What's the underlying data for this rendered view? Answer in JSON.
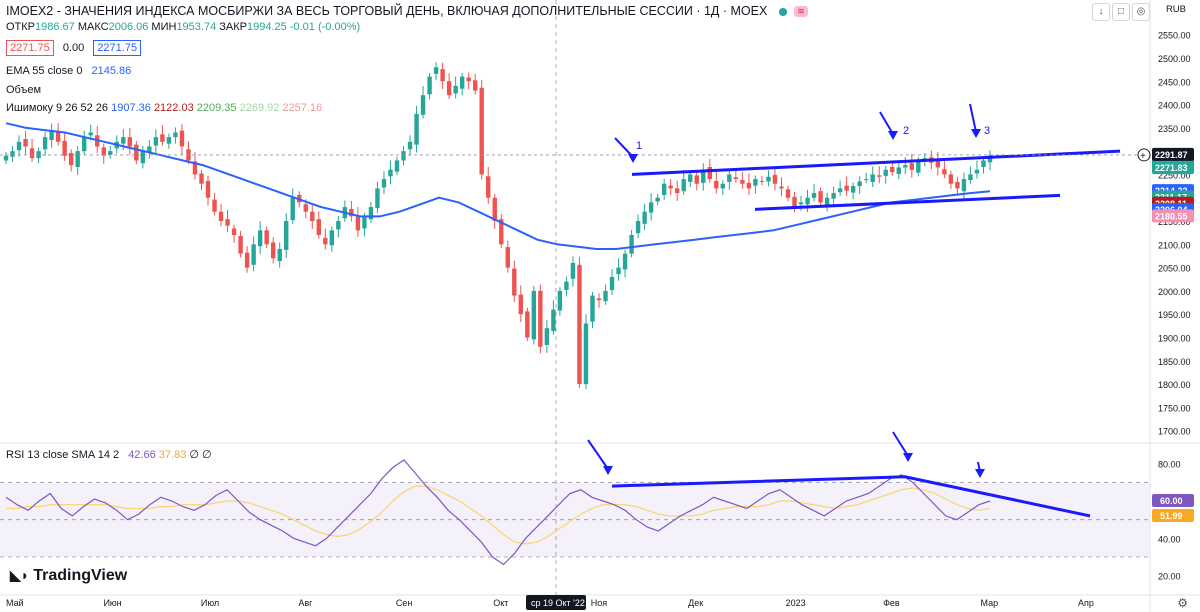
{
  "header": {
    "title": "IMOEX2 - ЗНАЧЕНИЯ ИНДЕКСА МОСБИРЖИ ЗА ВЕСЬ ТОРГОВЫЙ ДЕНЬ, ВКЛЮЧАЯ ДОПОЛНИТЕЛЬНЫЕ СЕССИИ · 1Д · MOEX",
    "currency": "RUB"
  },
  "ohlc": {
    "open_label": "ОТКР",
    "open": "1986.67",
    "high_label": "МАКС",
    "high": "2006.06",
    "low_label": "МИН",
    "low": "1953.74",
    "close_label": "ЗАКР",
    "close": "1994.25",
    "change": "-0.01 (-0.00%)"
  },
  "trade_boxes": {
    "sell": "2271.75",
    "spread": "0.00",
    "buy": "2271.75"
  },
  "indicators": {
    "ema_label": "EMA 55 close 0",
    "ema_value": "2145.86",
    "volume_label": "Объем",
    "ichimoku_label": "Ишимоку 9 26 52 26",
    "ichimoku_values": [
      "1907.36",
      "2122.03",
      "2209.35",
      "2269.92",
      "2257.16"
    ]
  },
  "rsi_legend": {
    "label": "RSI 13 close SMA 14 2",
    "rsi": "42.66",
    "sma": "37.83",
    "extra": "∅ ∅"
  },
  "price_axis": {
    "ticks": [
      "2550.00",
      "2500.00",
      "2450.00",
      "2400.00",
      "2350.00",
      "2300.00",
      "2250.00",
      "2200.00",
      "2150.00",
      "2100.00",
      "2050.00",
      "2000.00",
      "1950.00",
      "1900.00",
      "1850.00",
      "1800.00",
      "1750.00",
      "1700.00"
    ],
    "labels": [
      {
        "text": "2271.83",
        "color": "#26a69a",
        "value": 2271.83
      },
      {
        "text": "2291.87",
        "color": "#131722",
        "value": 2291.87
      },
      {
        "text": "2271.83",
        "color": "#26a69a",
        "value": 2263.5
      },
      {
        "text": "2214.22",
        "color": "#2962ff",
        "value": 2214.22
      },
      {
        "text": "2211.17",
        "color": "#26a69a",
        "value": 2200.5
      },
      {
        "text": "2208.11",
        "color": "#b71c1c",
        "value": 2187.0
      },
      {
        "text": "2206.04",
        "color": "#2962ff",
        "value": 2173.5
      },
      {
        "text": "2180.55",
        "color": "#f48fb1",
        "value": 2160.0
      }
    ]
  },
  "rsi_axis": {
    "ticks": [
      "80.00",
      "60.00",
      "40.00",
      "20.00"
    ],
    "labels": [
      {
        "text": "60.00",
        "color": "#7e57c2",
        "value": 60.0
      },
      {
        "text": "51.99",
        "color": "#f9a825",
        "value": 51.99
      }
    ]
  },
  "time_axis": {
    "labels": [
      "Май",
      "Июн",
      "Июл",
      "Авг",
      "Сен",
      "Окт",
      "Ноя",
      "Дек",
      "2023",
      "Фев",
      "Мар",
      "Апр"
    ],
    "crosshair_label": "ср 19 Окт '22"
  },
  "annotations": [
    "1",
    "2",
    "3"
  ],
  "brand": "TradingView",
  "chart_data": {
    "type": "candlestick",
    "instrument": "IMOEX2",
    "timeframe": "1Д",
    "price_range": [
      1680,
      2560
    ],
    "rsi_range": [
      15,
      90
    ],
    "candles_close": [
      2290,
      2300,
      2320,
      2310,
      2285,
      2300,
      2330,
      2345,
      2320,
      2290,
      2270,
      2300,
      2330,
      2340,
      2310,
      2290,
      2300,
      2320,
      2330,
      2310,
      2280,
      2300,
      2310,
      2330,
      2320,
      2330,
      2340,
      2310,
      2280,
      2250,
      2230,
      2200,
      2170,
      2150,
      2140,
      2120,
      2080,
      2050,
      2100,
      2130,
      2100,
      2070,
      2090,
      2150,
      2200,
      2190,
      2170,
      2150,
      2120,
      2100,
      2130,
      2150,
      2180,
      2160,
      2130,
      2160,
      2180,
      2220,
      2240,
      2260,
      2280,
      2300,
      2320,
      2380,
      2420,
      2460,
      2480,
      2450,
      2420,
      2440,
      2460,
      2450,
      2430,
      2250,
      2200,
      2150,
      2100,
      2050,
      1990,
      1950,
      1900,
      2000,
      1880,
      1920,
      1960,
      2000,
      2020,
      2060,
      1800,
      1930,
      1990,
      1980,
      2000,
      2030,
      2050,
      2080,
      2120,
      2150,
      2170,
      2190,
      2200,
      2230,
      2220,
      2210,
      2240,
      2250,
      2230,
      2260,
      2240,
      2220,
      2230,
      2250,
      2240,
      2230,
      2220,
      2240,
      2235,
      2245,
      2230,
      2220,
      2200,
      2180,
      2190,
      2200,
      2210,
      2190,
      2200,
      2210,
      2220,
      2215,
      2225,
      2235,
      2240,
      2250,
      2245,
      2260,
      2255,
      2265,
      2270,
      2260,
      2280,
      2285,
      2275,
      2265,
      2250,
      2230,
      2220,
      2240,
      2250,
      2260,
      2280,
      2291
    ],
    "ema55": [
      2360,
      2350,
      2345,
      2340,
      2330,
      2320,
      2310,
      2300,
      2290,
      2280,
      2270,
      2255,
      2240,
      2225,
      2210,
      2195,
      2180,
      2170,
      2160,
      2160,
      2170,
      2185,
      2200,
      2190,
      2170,
      2150,
      2130,
      2110,
      2100,
      2095,
      2090,
      2090,
      2095,
      2100,
      2105,
      2110,
      2115,
      2120,
      2125,
      2130,
      2140,
      2150,
      2160,
      2170,
      2180,
      2190,
      2195,
      2200,
      2205,
      2210,
      2214
    ],
    "annotation_points": [
      {
        "label": "1",
        "price": 2255
      },
      {
        "label": "2",
        "price": 2283
      },
      {
        "label": "3",
        "price": 2287
      }
    ]
  }
}
